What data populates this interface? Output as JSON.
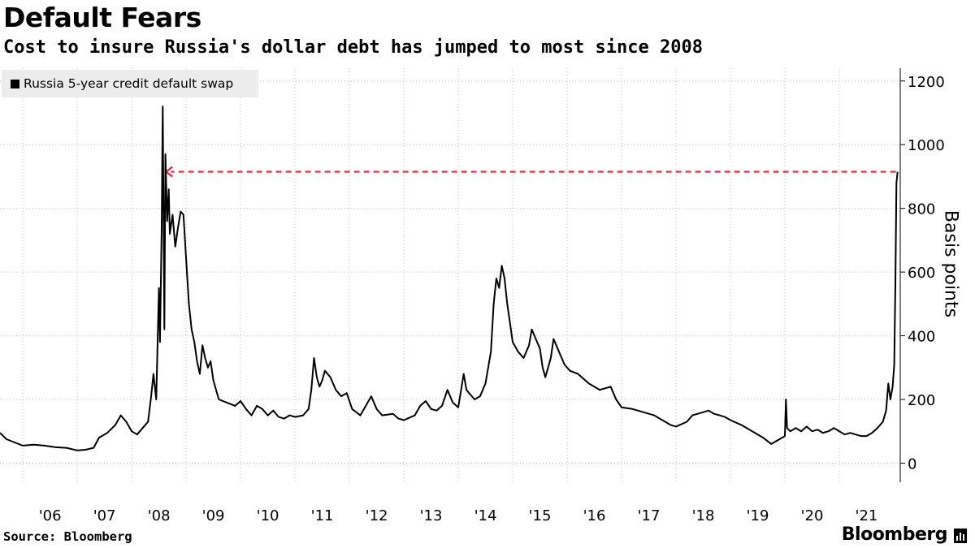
{
  "chart_data": {
    "type": "line",
    "title": "Default Fears",
    "subtitle": "Cost to insure Russia's dollar debt has jumped to most since 2008",
    "ylabel": "Basis points",
    "ylim": [
      -60,
      1230
    ],
    "yticks": [
      0,
      200,
      400,
      600,
      800,
      1000,
      1200
    ],
    "xlim": [
      2005.58,
      2022.12
    ],
    "xticks": [
      {
        "label": "'06",
        "value": 2006
      },
      {
        "label": "'07",
        "value": 2007
      },
      {
        "label": "'08",
        "value": 2008
      },
      {
        "label": "'09",
        "value": 2009
      },
      {
        "label": "'10",
        "value": 2010
      },
      {
        "label": "'11",
        "value": 2011
      },
      {
        "label": "'12",
        "value": 2012
      },
      {
        "label": "'13",
        "value": 2013
      },
      {
        "label": "'14",
        "value": 2014
      },
      {
        "label": "'15",
        "value": 2015
      },
      {
        "label": "'16",
        "value": 2016
      },
      {
        "label": "'17",
        "value": 2017
      },
      {
        "label": "'18",
        "value": 2018
      },
      {
        "label": "'19",
        "value": 2019
      },
      {
        "label": "'20",
        "value": 2020
      },
      {
        "label": "'21",
        "value": 2021
      }
    ],
    "grid": "dotted",
    "legend_position": "top-left",
    "series": [
      {
        "name": "Russia 5-year credit default swap",
        "color": "#000000",
        "points": [
          [
            2005.58,
            95
          ],
          [
            2005.7,
            75
          ],
          [
            2005.85,
            65
          ],
          [
            2006.0,
            55
          ],
          [
            2006.2,
            58
          ],
          [
            2006.4,
            55
          ],
          [
            2006.6,
            50
          ],
          [
            2006.8,
            48
          ],
          [
            2007.0,
            40
          ],
          [
            2007.15,
            42
          ],
          [
            2007.3,
            48
          ],
          [
            2007.4,
            80
          ],
          [
            2007.55,
            95
          ],
          [
            2007.7,
            120
          ],
          [
            2007.8,
            150
          ],
          [
            2007.9,
            130
          ],
          [
            2008.0,
            100
          ],
          [
            2008.1,
            90
          ],
          [
            2008.2,
            110
          ],
          [
            2008.3,
            130
          ],
          [
            2008.35,
            200
          ],
          [
            2008.4,
            280
          ],
          [
            2008.45,
            200
          ],
          [
            2008.5,
            550
          ],
          [
            2008.52,
            380
          ],
          [
            2008.55,
            740
          ],
          [
            2008.57,
            1120
          ],
          [
            2008.6,
            420
          ],
          [
            2008.62,
            970
          ],
          [
            2008.65,
            760
          ],
          [
            2008.68,
            860
          ],
          [
            2008.7,
            720
          ],
          [
            2008.75,
            780
          ],
          [
            2008.8,
            680
          ],
          [
            2008.85,
            740
          ],
          [
            2008.9,
            790
          ],
          [
            2008.95,
            780
          ],
          [
            2009.0,
            640
          ],
          [
            2009.05,
            500
          ],
          [
            2009.1,
            420
          ],
          [
            2009.15,
            380
          ],
          [
            2009.2,
            320
          ],
          [
            2009.25,
            280
          ],
          [
            2009.3,
            370
          ],
          [
            2009.35,
            330
          ],
          [
            2009.4,
            300
          ],
          [
            2009.45,
            320
          ],
          [
            2009.5,
            260
          ],
          [
            2009.6,
            200
          ],
          [
            2009.75,
            190
          ],
          [
            2009.9,
            180
          ],
          [
            2010.0,
            195
          ],
          [
            2010.1,
            170
          ],
          [
            2010.2,
            150
          ],
          [
            2010.3,
            180
          ],
          [
            2010.4,
            170
          ],
          [
            2010.5,
            150
          ],
          [
            2010.6,
            165
          ],
          [
            2010.7,
            145
          ],
          [
            2010.8,
            140
          ],
          [
            2010.9,
            150
          ],
          [
            2011.0,
            145
          ],
          [
            2011.15,
            150
          ],
          [
            2011.25,
            170
          ],
          [
            2011.3,
            230
          ],
          [
            2011.35,
            330
          ],
          [
            2011.4,
            270
          ],
          [
            2011.45,
            240
          ],
          [
            2011.5,
            260
          ],
          [
            2011.55,
            290
          ],
          [
            2011.65,
            270
          ],
          [
            2011.75,
            230
          ],
          [
            2011.85,
            210
          ],
          [
            2011.95,
            220
          ],
          [
            2012.05,
            170
          ],
          [
            2012.2,
            150
          ],
          [
            2012.4,
            210
          ],
          [
            2012.5,
            170
          ],
          [
            2012.6,
            150
          ],
          [
            2012.8,
            155
          ],
          [
            2012.9,
            140
          ],
          [
            2013.0,
            135
          ],
          [
            2013.2,
            150
          ],
          [
            2013.3,
            180
          ],
          [
            2013.4,
            195
          ],
          [
            2013.5,
            170
          ],
          [
            2013.6,
            165
          ],
          [
            2013.7,
            180
          ],
          [
            2013.8,
            230
          ],
          [
            2013.9,
            190
          ],
          [
            2014.0,
            175
          ],
          [
            2014.1,
            280
          ],
          [
            2014.15,
            230
          ],
          [
            2014.2,
            220
          ],
          [
            2014.3,
            200
          ],
          [
            2014.4,
            210
          ],
          [
            2014.5,
            250
          ],
          [
            2014.6,
            350
          ],
          [
            2014.65,
            500
          ],
          [
            2014.7,
            580
          ],
          [
            2014.75,
            550
          ],
          [
            2014.8,
            620
          ],
          [
            2014.85,
            580
          ],
          [
            2014.9,
            500
          ],
          [
            2014.95,
            440
          ],
          [
            2015.0,
            380
          ],
          [
            2015.1,
            350
          ],
          [
            2015.2,
            330
          ],
          [
            2015.3,
            370
          ],
          [
            2015.35,
            420
          ],
          [
            2015.4,
            400
          ],
          [
            2015.5,
            360
          ],
          [
            2015.55,
            300
          ],
          [
            2015.6,
            270
          ],
          [
            2015.7,
            330
          ],
          [
            2015.75,
            390
          ],
          [
            2015.85,
            350
          ],
          [
            2015.95,
            310
          ],
          [
            2016.05,
            290
          ],
          [
            2016.2,
            280
          ],
          [
            2016.4,
            250
          ],
          [
            2016.6,
            230
          ],
          [
            2016.8,
            240
          ],
          [
            2016.9,
            200
          ],
          [
            2017.0,
            175
          ],
          [
            2017.2,
            170
          ],
          [
            2017.4,
            160
          ],
          [
            2017.6,
            150
          ],
          [
            2017.8,
            130
          ],
          [
            2017.9,
            120
          ],
          [
            2018.0,
            115
          ],
          [
            2018.2,
            130
          ],
          [
            2018.3,
            150
          ],
          [
            2018.4,
            155
          ],
          [
            2018.5,
            160
          ],
          [
            2018.6,
            165
          ],
          [
            2018.7,
            155
          ],
          [
            2018.8,
            150
          ],
          [
            2018.9,
            145
          ],
          [
            2019.0,
            135
          ],
          [
            2019.2,
            120
          ],
          [
            2019.4,
            100
          ],
          [
            2019.6,
            80
          ],
          [
            2019.75,
            60
          ],
          [
            2019.85,
            70
          ],
          [
            2019.95,
            80
          ],
          [
            2020.0,
            85
          ],
          [
            2020.02,
            200
          ],
          [
            2020.04,
            110
          ],
          [
            2020.1,
            100
          ],
          [
            2020.2,
            110
          ],
          [
            2020.3,
            100
          ],
          [
            2020.4,
            115
          ],
          [
            2020.5,
            100
          ],
          [
            2020.6,
            105
          ],
          [
            2020.7,
            95
          ],
          [
            2020.8,
            100
          ],
          [
            2020.9,
            110
          ],
          [
            2021.0,
            100
          ],
          [
            2021.1,
            90
          ],
          [
            2021.2,
            95
          ],
          [
            2021.3,
            90
          ],
          [
            2021.4,
            85
          ],
          [
            2021.5,
            85
          ],
          [
            2021.6,
            95
          ],
          [
            2021.7,
            110
          ],
          [
            2021.8,
            130
          ],
          [
            2021.86,
            165
          ],
          [
            2021.9,
            250
          ],
          [
            2021.94,
            200
          ],
          [
            2021.98,
            240
          ],
          [
            2022.01,
            310
          ],
          [
            2022.03,
            560
          ],
          [
            2022.05,
            880
          ],
          [
            2022.07,
            915
          ]
        ]
      }
    ],
    "reference_line": {
      "from": [
        2022.07,
        915
      ],
      "to": [
        2008.6,
        915
      ],
      "style": "dashed",
      "color": "#e8273a",
      "arrow": "left"
    }
  },
  "footer": {
    "source": "Source: Bloomberg",
    "brand": "Bloomberg"
  }
}
